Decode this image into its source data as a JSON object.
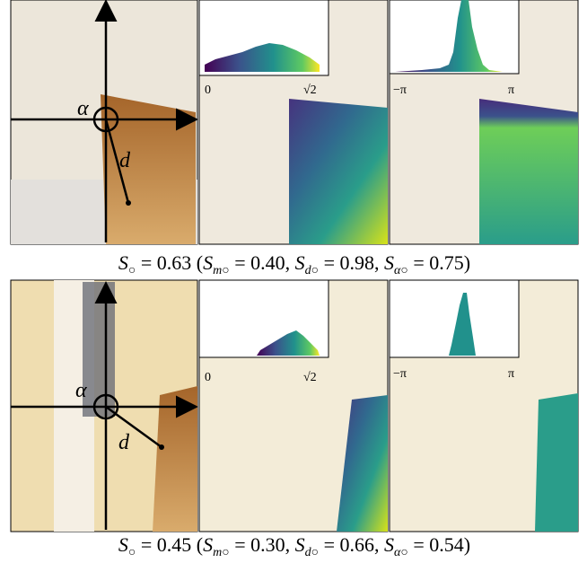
{
  "rows": [
    {
      "labels": {
        "alpha": "α",
        "d": "d"
      },
      "hist_m": {
        "min": "0",
        "max": "√2"
      },
      "hist_a": {
        "min": "−π",
        "max": "π"
      },
      "caption": [
        {
          "text": "S",
          "italic": true
        },
        {
          "text": "○",
          "sub": true
        },
        {
          "text": " = 0.63    ("
        },
        {
          "text": "S",
          "italic": true
        },
        {
          "text": "m○",
          "sub": true,
          "italic": true
        },
        {
          "text": " = 0.40, "
        },
        {
          "text": "S",
          "italic": true
        },
        {
          "text": "d○",
          "sub": true,
          "italic": true
        },
        {
          "text": " = 0.98, "
        },
        {
          "text": "S",
          "italic": true
        },
        {
          "text": "α○",
          "sub": true,
          "italic": true
        },
        {
          "text": " = 0.75)"
        }
      ]
    },
    {
      "labels": {
        "alpha": "α",
        "d": "d"
      },
      "hist_m": {
        "min": "0",
        "max": "√2"
      },
      "hist_a": {
        "min": "−π",
        "max": "π"
      },
      "caption": [
        {
          "text": "S",
          "italic": true
        },
        {
          "text": "○",
          "sub": true
        },
        {
          "text": " = 0.45    ("
        },
        {
          "text": "S",
          "italic": true
        },
        {
          "text": "m○",
          "sub": true,
          "italic": true
        },
        {
          "text": " = 0.30, "
        },
        {
          "text": "S",
          "italic": true
        },
        {
          "text": "d○",
          "sub": true,
          "italic": true
        },
        {
          "text": " = 0.66, "
        },
        {
          "text": "S",
          "italic": true
        },
        {
          "text": "α○",
          "sub": true,
          "italic": true
        },
        {
          "text": " = 0.54)"
        }
      ]
    }
  ]
}
